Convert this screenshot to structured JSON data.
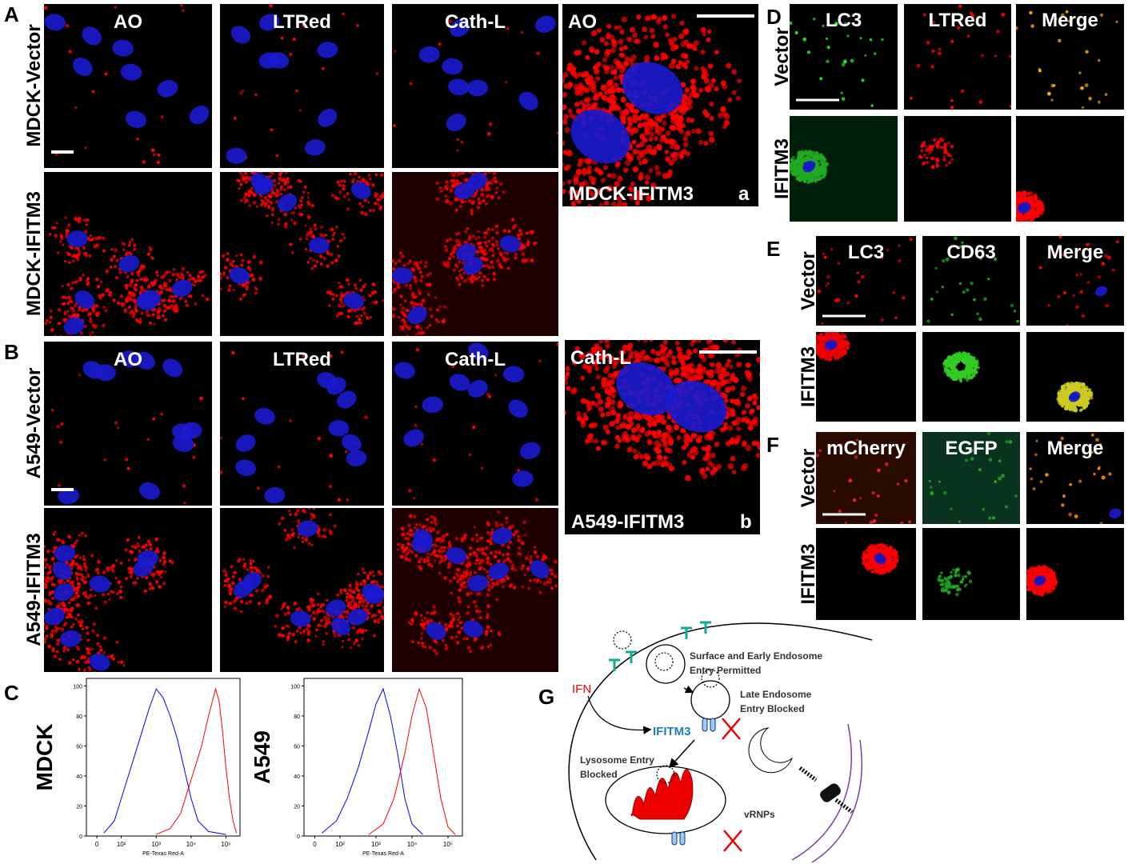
{
  "panels": {
    "A": {
      "label": "A",
      "columns": [
        "AO",
        "LTRed",
        "Cath-L"
      ],
      "rows": [
        "MDCK-Vector",
        "MDCK-IFITM3"
      ],
      "inset": {
        "stain": "AO",
        "cell": "MDCK-IFITM3",
        "tag": "a"
      }
    },
    "B": {
      "label": "B",
      "columns": [
        "AO",
        "LTRed",
        "Cath-L"
      ],
      "rows": [
        "A549-Vector",
        "A549-IFITM3"
      ],
      "inset": {
        "stain": "Cath-L",
        "cell": "A549-IFITM3",
        "tag": "b"
      }
    },
    "C": {
      "label": "C",
      "plots": [
        {
          "name": "MDCK",
          "x_label": "PE-Texas Red-A",
          "xlim": [
            1,
            5.4
          ],
          "ylim": [
            0,
            105
          ],
          "xticks": [
            {
              "value": 1.3,
              "label": "0"
            },
            {
              "value": 2,
              "label": "10²"
            },
            {
              "value": 3,
              "label": "10³"
            },
            {
              "value": 4,
              "label": "10⁴"
            },
            {
              "value": 5,
              "label": "10⁵"
            }
          ],
          "yticks": [
            0,
            20,
            40,
            60,
            80,
            100
          ],
          "series": [
            {
              "color": "#0000ff",
              "x": [
                1.5,
                1.8,
                2.0,
                2.2,
                2.4,
                2.6,
                2.8,
                3.0,
                3.2,
                3.4,
                3.6,
                3.8,
                4.0,
                4.2,
                4.5,
                5.0
              ],
              "y": [
                2,
                10,
                25,
                40,
                55,
                70,
                85,
                98,
                92,
                80,
                65,
                45,
                25,
                10,
                3,
                1
              ]
            },
            {
              "color": "#ff0000",
              "x": [
                3.0,
                3.4,
                3.7,
                3.9,
                4.1,
                4.3,
                4.5,
                4.7,
                4.8,
                4.9,
                5.0,
                5.1,
                5.2,
                5.3
              ],
              "y": [
                1,
                5,
                15,
                30,
                45,
                60,
                80,
                98,
                90,
                70,
                45,
                25,
                10,
                2
              ]
            }
          ]
        },
        {
          "name": "A549",
          "x_label": "PE-Texas Red-A",
          "xlim": [
            1,
            5.4
          ],
          "ylim": [
            0,
            105
          ],
          "xticks": [
            {
              "value": 1.3,
              "label": "0"
            },
            {
              "value": 2,
              "label": "10²"
            },
            {
              "value": 3,
              "label": "10³"
            },
            {
              "value": 4,
              "label": "10⁴"
            },
            {
              "value": 5,
              "label": "10⁵"
            }
          ],
          "yticks": [
            0,
            20,
            40,
            60,
            80,
            100
          ],
          "series": [
            {
              "color": "#0000ff",
              "x": [
                1.5,
                1.9,
                2.2,
                2.5,
                2.8,
                3.0,
                3.2,
                3.4,
                3.6,
                3.8,
                4.0,
                4.3
              ],
              "y": [
                2,
                10,
                25,
                45,
                70,
                88,
                98,
                80,
                55,
                25,
                8,
                1
              ]
            },
            {
              "color": "#ff0000",
              "x": [
                2.8,
                3.2,
                3.5,
                3.8,
                4.0,
                4.2,
                4.4,
                4.6,
                4.8,
                5.0,
                5.2
              ],
              "y": [
                1,
                8,
                25,
                55,
                80,
                98,
                85,
                55,
                25,
                6,
                1
              ]
            }
          ]
        }
      ]
    },
    "D": {
      "label": "D",
      "columns": [
        "LC3",
        "LTRed",
        "Merge"
      ],
      "rows": [
        "Vector",
        "IFITM3"
      ]
    },
    "E": {
      "label": "E",
      "columns": [
        "LC3",
        "CD63",
        "Merge"
      ],
      "rows": [
        "Vector",
        "IFITM3"
      ]
    },
    "F": {
      "label": "F",
      "columns": [
        "mCherry",
        "EGFP",
        "Merge"
      ],
      "rows": [
        "Vector",
        "IFITM3"
      ]
    },
    "G": {
      "label": "G",
      "ifn": "IFN",
      "surface": [
        "Surface and Early Endosome",
        "Entry Permitted"
      ],
      "late": [
        "Late Endosome",
        "Entry Blocked"
      ],
      "ifitm3": "IFITM3",
      "lysosome": [
        "Lysosome Entry",
        "Blocked"
      ],
      "vrnps": "vRNPs"
    }
  }
}
